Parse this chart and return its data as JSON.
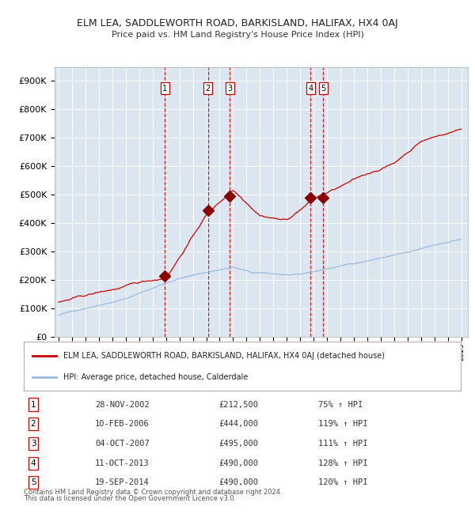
{
  "title": "ELM LEA, SADDLEWORTH ROAD, BARKISLAND, HALIFAX, HX4 0AJ",
  "subtitle": "Price paid vs. HM Land Registry's House Price Index (HPI)",
  "ylim": [
    0,
    950000
  ],
  "yticks": [
    0,
    100000,
    200000,
    300000,
    400000,
    500000,
    600000,
    700000,
    800000,
    900000
  ],
  "ytick_labels": [
    "£0",
    "£100K",
    "£200K",
    "£300K",
    "£400K",
    "£500K",
    "£600K",
    "£700K",
    "£800K",
    "£900K"
  ],
  "plot_bg_color": "#dce6f1",
  "red_line_color": "#cc0000",
  "blue_line_color": "#99bbdd",
  "marker_color": "#880000",
  "dashed_line_color": "#cc0000",
  "transactions": [
    {
      "num": 1,
      "date": "28-NOV-2002",
      "price": 212500,
      "year": 2002.91
    },
    {
      "num": 2,
      "date": "10-FEB-2006",
      "price": 444000,
      "year": 2006.12
    },
    {
      "num": 3,
      "date": "04-OCT-2007",
      "price": 495000,
      "year": 2007.75
    },
    {
      "num": 4,
      "date": "11-OCT-2013",
      "price": 490000,
      "year": 2013.78
    },
    {
      "num": 5,
      "date": "19-SEP-2014",
      "price": 490000,
      "year": 2014.72
    }
  ],
  "legend_line1": "ELM LEA, SADDLEWORTH ROAD, BARKISLAND, HALIFAX, HX4 0AJ (detached house)",
  "legend_line2": "HPI: Average price, detached house, Calderdale",
  "footer1": "Contains HM Land Registry data © Crown copyright and database right 2024.",
  "footer2": "This data is licensed under the Open Government Licence v3.0.",
  "table_rows": [
    [
      "1",
      "28-NOV-2002",
      "£212,500",
      "75% ↑ HPI"
    ],
    [
      "2",
      "10-FEB-2006",
      "£444,000",
      "119% ↑ HPI"
    ],
    [
      "3",
      "04-OCT-2007",
      "£495,000",
      "111% ↑ HPI"
    ],
    [
      "4",
      "11-OCT-2013",
      "£490,000",
      "128% ↑ HPI"
    ],
    [
      "5",
      "19-SEP-2014",
      "£490,000",
      "120% ↑ HPI"
    ]
  ],
  "xmin": 1994.7,
  "xmax": 2025.5
}
